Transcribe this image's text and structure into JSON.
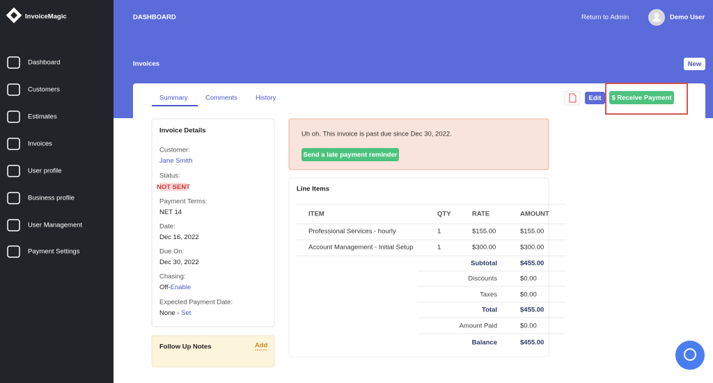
{
  "sidebar": {
    "brand": "InvoiceMagic",
    "nav": [
      "Dashboard",
      "Customers",
      "Estimates",
      "Invoices",
      "User profile",
      "Business profile",
      "User Management",
      "Payment Settings"
    ]
  },
  "header": {
    "section": "DASHBOARD",
    "return_link": "Return to Admin",
    "user": "Demo User"
  },
  "page": {
    "title": "Invoices",
    "new_button": "New"
  },
  "tabs": [
    "Summary",
    "Comments",
    "History"
  ],
  "actions": {
    "edit": "Edit",
    "receive_payment": "$ Receive Payment"
  },
  "details": {
    "title": "Invoice Details",
    "fields": [
      {
        "label": "Customer:",
        "link": "Jane Smith"
      },
      {
        "label": "Status:",
        "badge": "NOT SENT"
      },
      {
        "label": "Payment Terms:",
        "value": "NET 14"
      },
      {
        "label": "Date:",
        "value": "Dec 16, 2022"
      },
      {
        "label": "Due On:",
        "value": "Dec 30, 2022"
      },
      {
        "label": "Chasing:",
        "value": "Off-",
        "link": "Enable"
      },
      {
        "label": "Expected Payment Date:",
        "value": "None - ",
        "link": "Set"
      }
    ]
  },
  "follow_up": {
    "title": "Follow Up Notes",
    "add": "Add"
  },
  "alert": {
    "message": "Uh oh. This invoice is past due since Dec 30, 2022.",
    "button": "Send a late payment reminder"
  },
  "line_items": {
    "title": "Line Items",
    "columns": [
      "ITEM",
      "QTY",
      "RATE",
      "AMOUNT"
    ],
    "rows": [
      [
        "Professional Services - hourly",
        "1",
        "$155.00",
        "$155.00"
      ],
      [
        "Account Management - Initial Setup",
        "1",
        "$300.00",
        "$300.00"
      ]
    ],
    "totals": [
      {
        "label": "Subtotal",
        "value": "$455.00"
      },
      {
        "label": "Discounts",
        "value": "$0.00"
      },
      {
        "label": "Taxes",
        "value": "$0.00"
      },
      {
        "label": "Total",
        "value": "$455.00"
      },
      {
        "label": "Amount Paid",
        "value": "$0.00"
      },
      {
        "label": "Balance",
        "value": "$455.00"
      }
    ]
  }
}
